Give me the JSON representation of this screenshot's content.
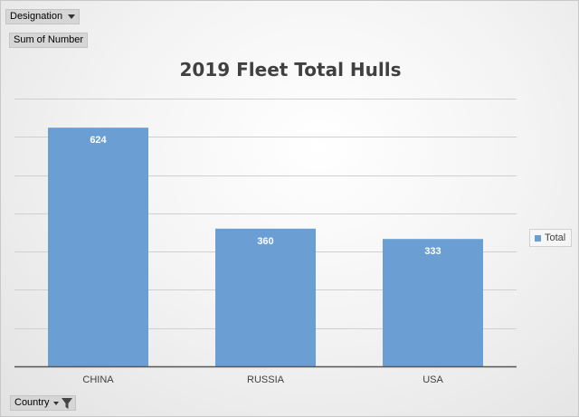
{
  "pivot_fields": {
    "filter_label": "Designation",
    "values_label": "Sum of Number",
    "axis_label": "Country"
  },
  "colors": {
    "bar": "#6b9fd4",
    "gridline": "#d0d0d0",
    "axis": "#555555",
    "label_text": "#404040"
  },
  "chart_data": {
    "type": "bar",
    "title": "2019 Fleet Total Hulls",
    "xlabel": "",
    "ylabel": "",
    "categories": [
      "CHINA",
      "RUSSIA",
      "USA"
    ],
    "series": [
      {
        "name": "Total",
        "values": [
          624,
          360,
          333
        ]
      }
    ],
    "ylim": [
      0,
      700
    ],
    "gridlines": true,
    "legend_position": "right",
    "data_labels": [
      "624",
      "360",
      "333"
    ]
  }
}
